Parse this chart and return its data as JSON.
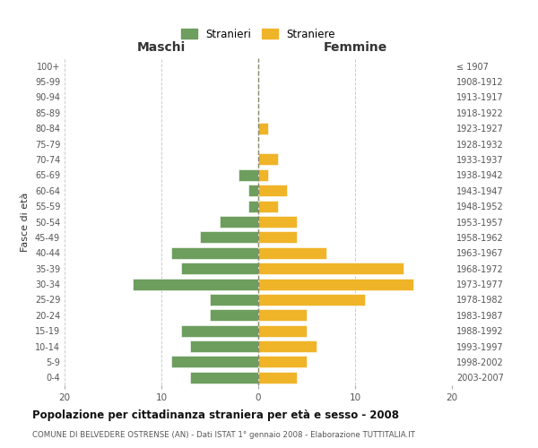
{
  "age_groups": [
    "0-4",
    "5-9",
    "10-14",
    "15-19",
    "20-24",
    "25-29",
    "30-34",
    "35-39",
    "40-44",
    "45-49",
    "50-54",
    "55-59",
    "60-64",
    "65-69",
    "70-74",
    "75-79",
    "80-84",
    "85-89",
    "90-94",
    "95-99",
    "100+"
  ],
  "birth_years": [
    "2003-2007",
    "1998-2002",
    "1993-1997",
    "1988-1992",
    "1983-1987",
    "1978-1982",
    "1973-1977",
    "1968-1972",
    "1963-1967",
    "1958-1962",
    "1953-1957",
    "1948-1952",
    "1943-1947",
    "1938-1942",
    "1933-1937",
    "1928-1932",
    "1923-1927",
    "1918-1922",
    "1913-1917",
    "1908-1912",
    "≤ 1907"
  ],
  "maschi": [
    7,
    9,
    7,
    8,
    5,
    5,
    13,
    8,
    9,
    6,
    4,
    1,
    1,
    2,
    0,
    0,
    0,
    0,
    0,
    0,
    0
  ],
  "femmine": [
    4,
    5,
    6,
    5,
    5,
    11,
    16,
    15,
    7,
    4,
    4,
    2,
    3,
    1,
    2,
    0,
    1,
    0,
    0,
    0,
    0
  ],
  "color_maschi": "#6e9e5e",
  "color_femmine": "#f0b429",
  "title": "Popolazione per cittadinanza straniera per età e sesso - 2008",
  "subtitle": "COMUNE DI BELVEDERE OSTRENSE (AN) - Dati ISTAT 1° gennaio 2008 - Elaborazione TUTTITALIA.IT",
  "xlabel_left": "Maschi",
  "xlabel_right": "Femmine",
  "ylabel_left": "Fasce di età",
  "legend_maschi": "Stranieri",
  "legend_femmine": "Straniere",
  "xlim": 20,
  "bg_color": "#ffffff",
  "grid_color": "#cccccc"
}
